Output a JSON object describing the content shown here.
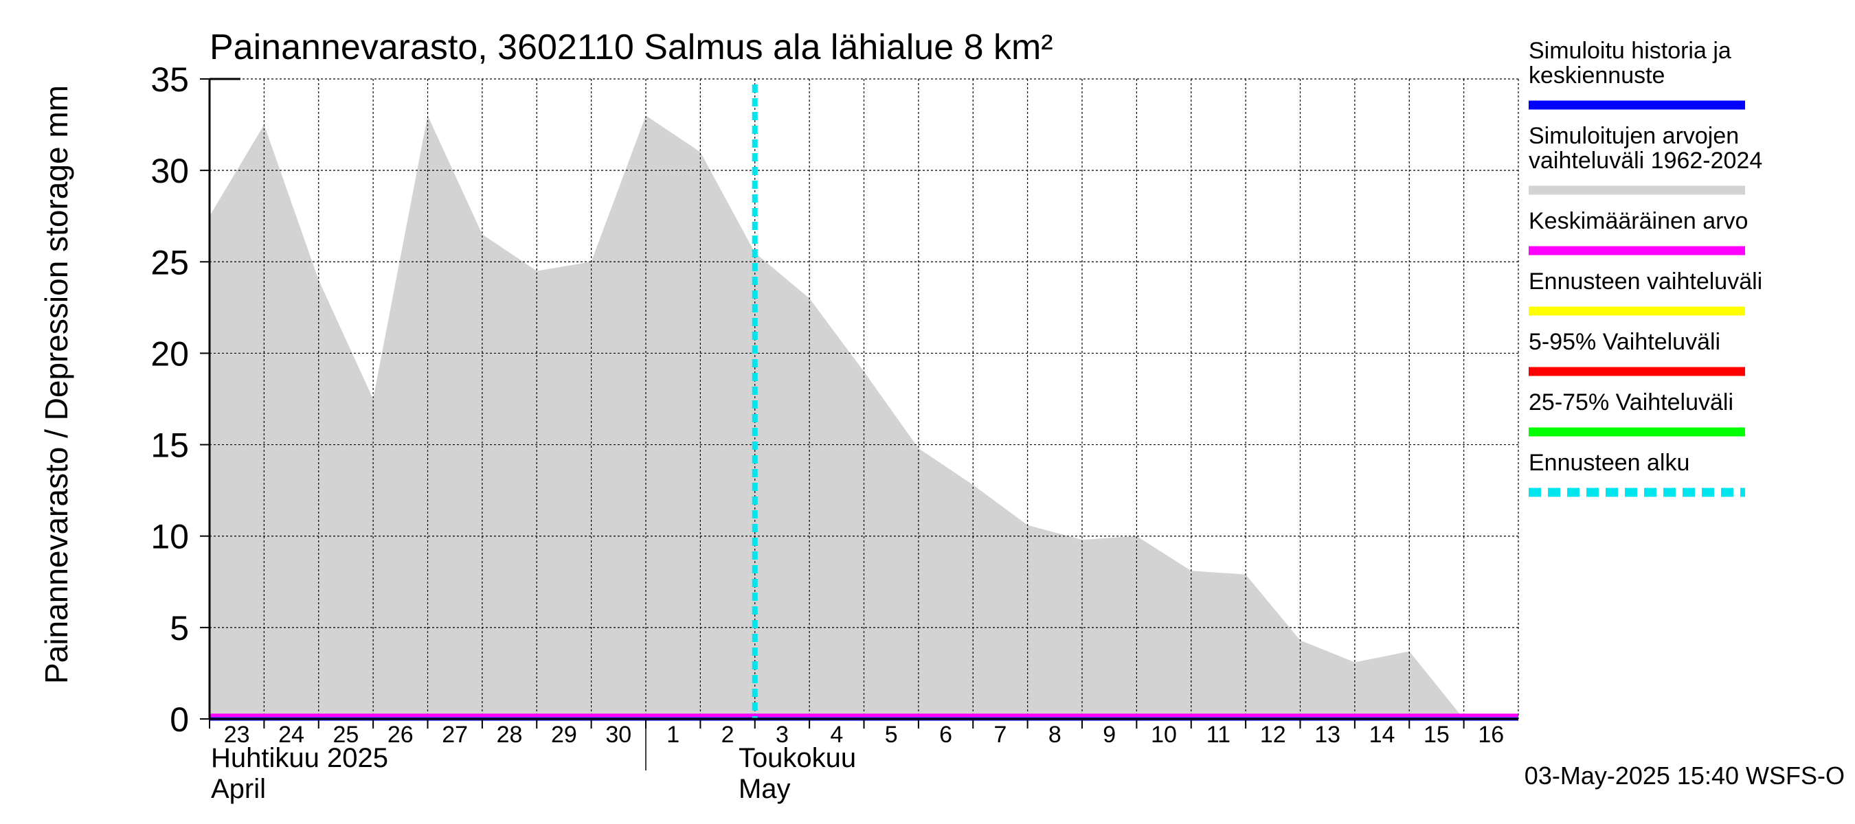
{
  "chart_data": {
    "type": "area",
    "title": "Painannevarasto, 3602110 Salmus ala lähialue 8 km²",
    "ylabel": "Painannevarasto / Depression storage    mm",
    "ylim": [
      0,
      35
    ],
    "yticks": [
      0,
      5,
      10,
      15,
      20,
      25,
      30,
      35
    ],
    "x_day_labels": [
      "23",
      "24",
      "25",
      "26",
      "27",
      "28",
      "29",
      "30",
      "1",
      "2",
      "3",
      "4",
      "5",
      "6",
      "7",
      "8",
      "9",
      "10",
      "11",
      "12",
      "13",
      "14",
      "15",
      "16"
    ],
    "month_labels": [
      {
        "line1": "Huhtikuu  2025",
        "line2": "April"
      },
      {
        "line1": "Toukokuu",
        "line2": "May"
      }
    ],
    "series": [
      {
        "name": "Simuloitujen arvojen vaihteluväli 1962-2024",
        "kind": "range",
        "color": "#d3d3d3",
        "x": [
          0,
          1,
          2,
          3,
          4,
          5,
          6,
          7,
          8,
          9,
          10,
          11,
          12,
          13,
          14,
          15,
          16,
          17,
          18,
          19,
          20,
          21,
          22,
          23,
          24
        ],
        "upper": [
          27.5,
          32.5,
          24.0,
          17.5,
          33.0,
          26.5,
          24.5,
          25.0,
          33.0,
          31.0,
          25.5,
          23.0,
          19.0,
          14.8,
          12.8,
          10.6,
          9.8,
          10.0,
          8.1,
          7.9,
          4.3,
          3.1,
          3.7,
          0.0,
          0.0
        ],
        "lower": [
          0,
          0,
          0,
          0,
          0,
          0,
          0,
          0,
          0,
          0,
          0,
          0,
          0,
          0,
          0,
          0,
          0,
          0,
          0,
          0,
          0,
          0,
          0,
          0,
          0
        ]
      },
      {
        "name": "Simuloitu historia ja keskiennuste",
        "kind": "line",
        "color": "#0000ff",
        "x": [
          0,
          24
        ],
        "values": [
          0,
          0
        ]
      },
      {
        "name": "Keskimääräinen arvo",
        "kind": "line",
        "color": "#ff00ff",
        "x": [
          0,
          24
        ],
        "values": [
          0.2,
          0.2
        ]
      }
    ],
    "forecast_start_x": 10.0,
    "legend": [
      {
        "label": "Simuloitu historia ja keskiennuste",
        "color": "#0000ff",
        "style": "solid"
      },
      {
        "label": "Simuloitujen arvojen vaihteluväli 1962-2024",
        "color": "#d3d3d3",
        "style": "solid"
      },
      {
        "label": "Keskimääräinen arvo",
        "color": "#ff00ff",
        "style": "solid"
      },
      {
        "label": "Ennusteen vaihteluväli",
        "color": "#ffff00",
        "style": "solid"
      },
      {
        "label": "5-95% Vaihteluväli",
        "color": "#ff0000",
        "style": "solid"
      },
      {
        "label": "25-75% Vaihteluväli",
        "color": "#00ff00",
        "style": "solid"
      },
      {
        "label": "Ennusteen alku",
        "color": "#00e5ee",
        "style": "dashed"
      }
    ],
    "timestamp": "03-May-2025 15:40 WSFS-O"
  }
}
